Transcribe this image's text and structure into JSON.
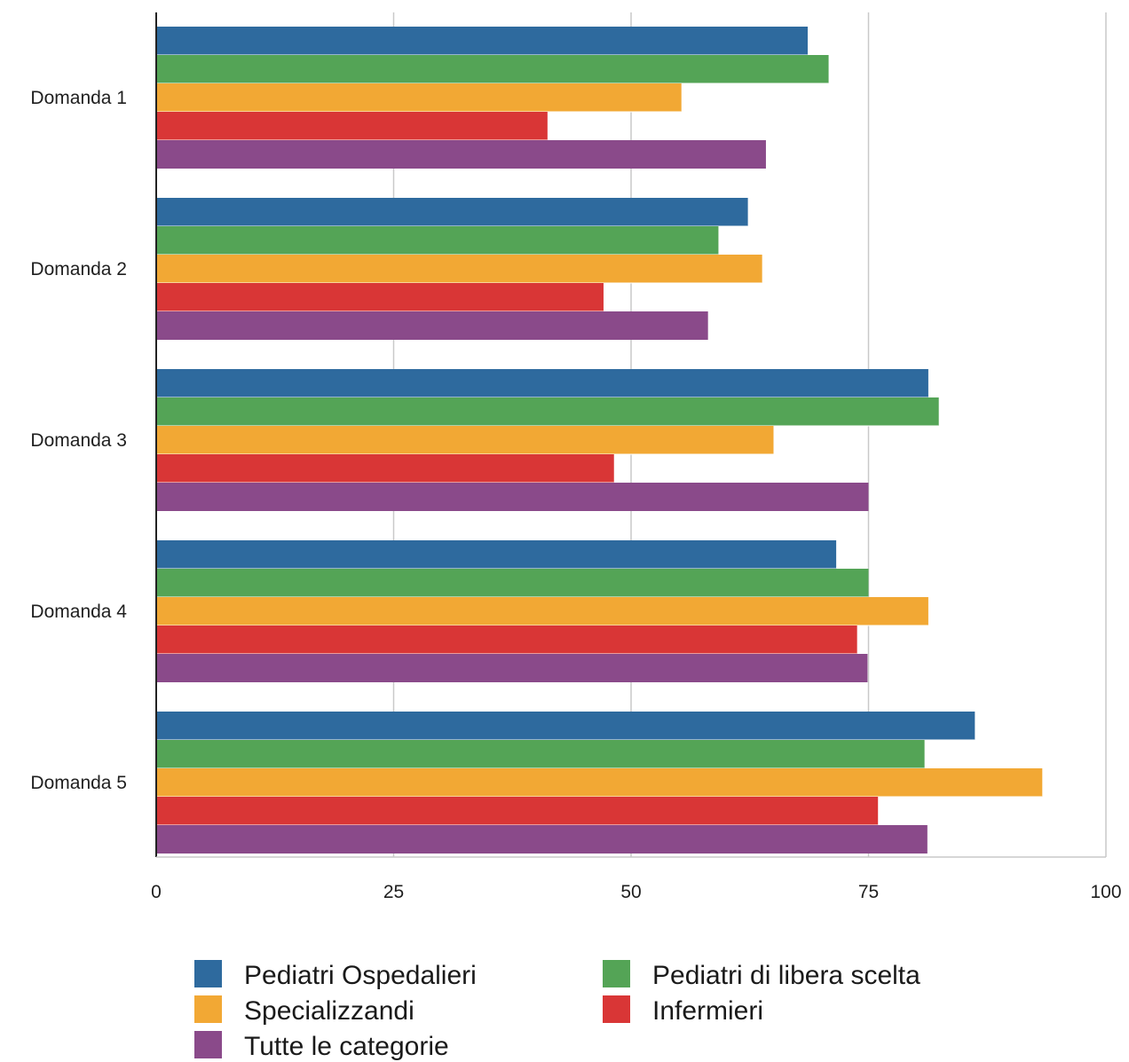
{
  "chart_data": {
    "type": "bar",
    "orientation": "horizontal",
    "categories": [
      "Domanda 1",
      "Domanda 2",
      "Domanda 3",
      "Domanda 4",
      "Domanda 5"
    ],
    "series": [
      {
        "name": "Pediatri Ospedalieri",
        "color": "#2e6a9e",
        "values": [
          68.6,
          62.3,
          81.3,
          71.6,
          86.2
        ]
      },
      {
        "name": "Pediatri di libera scelta",
        "color": "#54a456",
        "values": [
          70.8,
          59.2,
          82.4,
          75.0,
          80.9
        ]
      },
      {
        "name": "Specializzandi",
        "color": "#f2a834",
        "values": [
          55.3,
          63.8,
          65.0,
          81.3,
          93.3
        ]
      },
      {
        "name": "Infermieri",
        "color": "#d93636",
        "values": [
          41.2,
          47.1,
          48.2,
          73.8,
          76.0
        ]
      },
      {
        "name": "Tutte le categorie",
        "color": "#8a4a8a",
        "values": [
          64.2,
          58.1,
          75.0,
          74.9,
          81.2
        ]
      }
    ],
    "x_ticks": [
      "0",
      "25",
      "50",
      "75",
      "100"
    ],
    "xlim": [
      0,
      100
    ],
    "grid": true,
    "legend_position": "bottom",
    "title": "",
    "xlabel": "",
    "ylabel": ""
  }
}
